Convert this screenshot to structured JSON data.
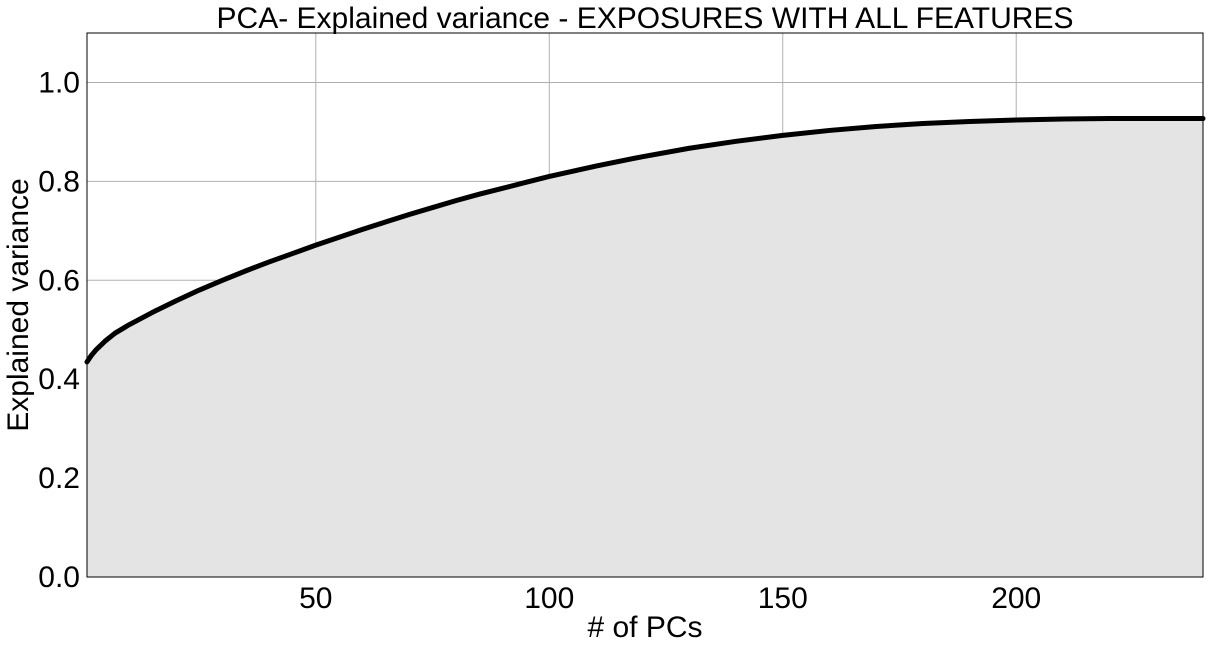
{
  "chart_data": {
    "type": "area",
    "title": "PCA- Explained variance - EXPOSURES WITH ALL FEATURES",
    "xlabel": "# of PCs",
    "ylabel": "Explained variance",
    "xlim": [
      1,
      240
    ],
    "ylim": [
      0,
      1.1
    ],
    "xticks": [
      50,
      100,
      150,
      200
    ],
    "xtick_labels": [
      "50",
      "100",
      "150",
      "200"
    ],
    "yticks": [
      0.0,
      0.2,
      0.4,
      0.6,
      0.8,
      1.0
    ],
    "ytick_labels": [
      "0.0",
      "0.2",
      "0.4",
      "0.6",
      "0.8",
      "1.0"
    ],
    "grid": true,
    "fill_color": "#e4e4e4",
    "line_color": "#000000",
    "series": [
      {
        "x": [
          1,
          2,
          3,
          5,
          7,
          10,
          15,
          20,
          25,
          30,
          35,
          40,
          45,
          50,
          55,
          60,
          65,
          70,
          75,
          80,
          85,
          90,
          95,
          100,
          110,
          120,
          130,
          140,
          150,
          160,
          170,
          180,
          190,
          200,
          210,
          220,
          230,
          240
        ],
        "y": [
          0.435,
          0.449,
          0.46,
          0.478,
          0.493,
          0.51,
          0.535,
          0.558,
          0.58,
          0.6,
          0.619,
          0.637,
          0.654,
          0.671,
          0.687,
          0.703,
          0.718,
          0.733,
          0.747,
          0.761,
          0.774,
          0.786,
          0.798,
          0.81,
          0.831,
          0.85,
          0.867,
          0.881,
          0.893,
          0.903,
          0.911,
          0.917,
          0.921,
          0.924,
          0.926,
          0.927,
          0.927,
          0.927
        ]
      }
    ]
  }
}
